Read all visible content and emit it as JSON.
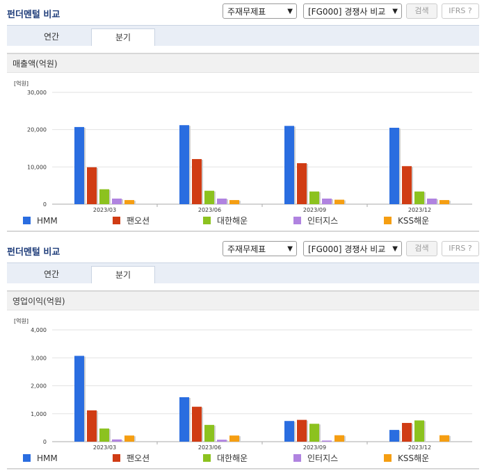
{
  "colors": {
    "HMM": "#2a6de0",
    "팬오션": "#d03c14",
    "대한해운": "#8cc21f",
    "인터지스": "#b083e0",
    "KSS해운": "#f59e12"
  },
  "panels": [
    {
      "title": "펀더멘털 비교",
      "select1": "주재무제표",
      "select2": "[FG000] 경쟁사 비교",
      "search_button": "검색",
      "ifrs_label": "IFRS ?",
      "tabs": [
        "연간",
        "분기"
      ],
      "active_tab": "분기",
      "section_title": "매출액(억원)",
      "legend": [
        "HMM",
        "팬오션",
        "대한해운",
        "인터지스",
        "KSS해운"
      ]
    },
    {
      "title": "펀더멘털 비교",
      "select1": "주재무제표",
      "select2": "[FG000] 경쟁사 비교",
      "search_button": "검색",
      "ifrs_label": "IFRS ?",
      "tabs": [
        "연간",
        "분기"
      ],
      "active_tab": "분기",
      "section_title": "영업이익(억원)",
      "legend": [
        "HMM",
        "팬오션",
        "대한해운",
        "인터지스",
        "KSS해운"
      ]
    }
  ],
  "chart_data": [
    {
      "type": "bar",
      "unit_label": "[억원]",
      "categories": [
        "2023/03",
        "2023/06",
        "2023/09",
        "2023/12"
      ],
      "ylim": [
        0,
        30000
      ],
      "yticks": [
        "0",
        "10,000",
        "20,000",
        "30,000"
      ],
      "ytick_values": [
        0,
        10000,
        20000,
        30000
      ],
      "series": [
        {
          "name": "HMM",
          "values": [
            20700,
            21200,
            21000,
            20500
          ]
        },
        {
          "name": "팬오션",
          "values": [
            9900,
            12100,
            11000,
            10200
          ]
        },
        {
          "name": "대한해운",
          "values": [
            4000,
            3600,
            3400,
            3400
          ]
        },
        {
          "name": "인터지스",
          "values": [
            1500,
            1500,
            1500,
            1500
          ]
        },
        {
          "name": "KSS해운",
          "values": [
            1100,
            1100,
            1200,
            1100
          ]
        }
      ]
    },
    {
      "type": "bar",
      "unit_label": "[억원]",
      "categories": [
        "2023/03",
        "2023/06",
        "2023/09",
        "2023/12"
      ],
      "ylim": [
        0,
        4000
      ],
      "yticks": [
        "0",
        "1,000",
        "2,000",
        "3,000",
        "4,000"
      ],
      "ytick_values": [
        0,
        1000,
        2000,
        3000,
        4000
      ],
      "series": [
        {
          "name": "HMM",
          "values": [
            3070,
            1590,
            740,
            420
          ]
        },
        {
          "name": "팬오션",
          "values": [
            1120,
            1250,
            780,
            670
          ]
        },
        {
          "name": "대한해운",
          "values": [
            470,
            600,
            640,
            760
          ]
        },
        {
          "name": "인터지스",
          "values": [
            80,
            70,
            40,
            0
          ]
        },
        {
          "name": "KSS해운",
          "values": [
            220,
            220,
            230,
            230
          ]
        }
      ]
    }
  ]
}
